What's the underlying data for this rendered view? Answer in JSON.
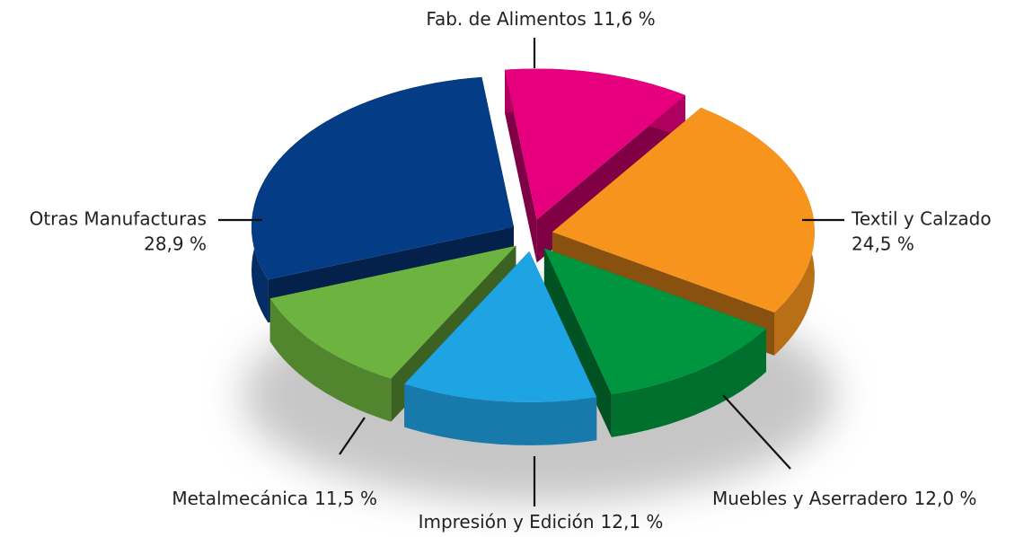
{
  "chart_data": {
    "type": "pie",
    "categories": [
      "Fab. de Alimentos",
      "Textil y Calzado",
      "Muebles y Aserradero",
      "Impresión y Edición",
      "Metalmecánica",
      "Otras Manufacturas"
    ],
    "values": [
      11.6,
      24.5,
      12.0,
      12.1,
      11.5,
      28.9
    ],
    "value_labels": [
      "11,6 %",
      "24,5 %",
      "12,0 %",
      "12,1 %",
      "11,5 %",
      "28,9 %"
    ],
    "colors": [
      "#e6007e",
      "#f7941d",
      "#00953f",
      "#1ea3e3",
      "#6cb33f",
      "#053c86"
    ]
  }
}
